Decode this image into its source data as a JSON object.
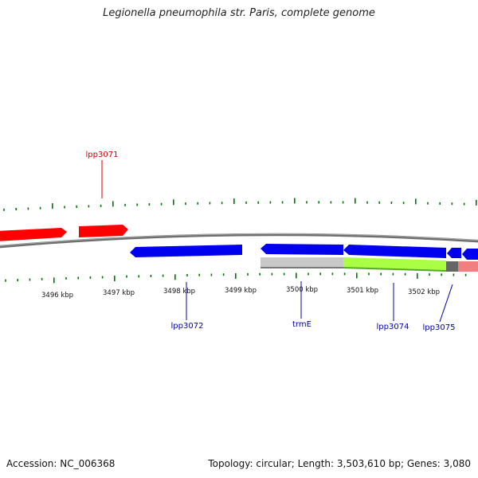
{
  "title": "Legionella pneumophila str. Paris, complete genome",
  "footer": {
    "accession": "Accession: NC_006368",
    "stats": "Topology: circular; Length: 3,503,610 bp; Genes: 3,080"
  },
  "colors": {
    "forward_gene": "#ff0000",
    "reverse_gene": "#0000ff",
    "backbone": "#808080",
    "tick": "#007700",
    "label_forward": "#cc0000",
    "label_reverse": "#0000aa"
  },
  "scale_labels": [
    "3496 kbp",
    "3497 kbp",
    "3498 kbp",
    "3499 kbp",
    "3500 kbp",
    "3501 kbp",
    "3502 kbp"
  ],
  "gene_labels": {
    "lpp3071": "lpp3071",
    "lpp3072": "lpp3072",
    "trmE": "trmE",
    "lpp3074": "lpp3074",
    "lpp3075": "lpp3075"
  }
}
